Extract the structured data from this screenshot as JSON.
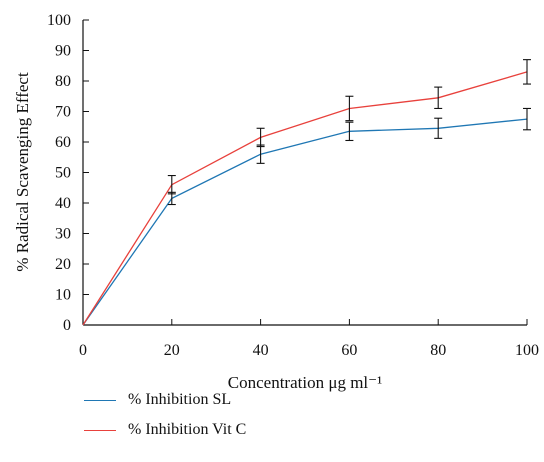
{
  "chart_data": {
    "type": "line",
    "xlabel": "Concentration",
    "xlabel_unit": "μg ml⁻¹",
    "ylabel": "% Radical Scavenging Effect",
    "x": [
      0,
      20,
      40,
      60,
      80,
      100
    ],
    "xlim": [
      0,
      100
    ],
    "ylim": [
      0,
      100
    ],
    "xticks": [
      "0",
      "20",
      "40",
      "60",
      "80",
      "100"
    ],
    "yticks": [
      "0",
      "10",
      "20",
      "30",
      "40",
      "50",
      "60",
      "70",
      "80",
      "90",
      "100"
    ],
    "grid": false,
    "legend_position": "bottom-left",
    "series": [
      {
        "name": "% Inhibition SL",
        "color": "#1f77b4",
        "values": [
          0,
          41.5,
          56,
          63.5,
          64.5,
          67.5
        ],
        "errors": [
          0,
          2,
          3,
          3,
          3.3,
          3.5
        ]
      },
      {
        "name": "% Inhibition Vit C",
        "color": "#e8413c",
        "values": [
          0,
          46,
          61.5,
          71,
          74.5,
          83
        ],
        "errors": [
          0,
          3,
          3,
          4,
          3.5,
          4
        ]
      }
    ],
    "error_bar_color": "#111111"
  }
}
